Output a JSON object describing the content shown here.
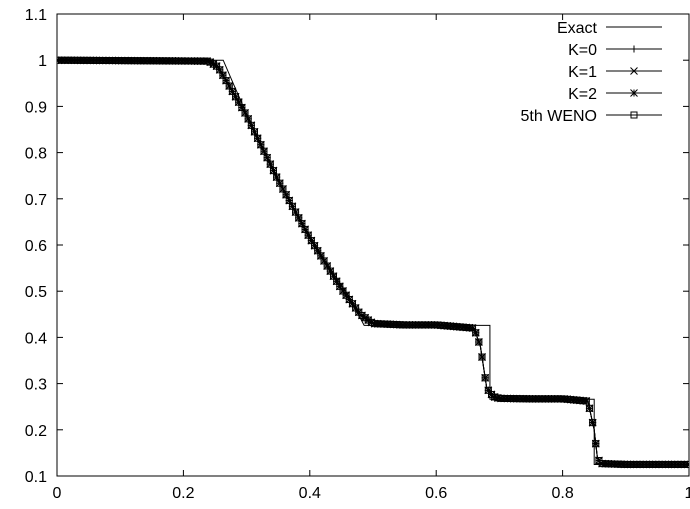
{
  "chart_data": {
    "type": "line",
    "title": "",
    "xlabel": "",
    "ylabel": "",
    "xlim": [
      0,
      1
    ],
    "ylim": [
      0.1,
      1.1
    ],
    "grid": false,
    "legend_position": "top-right",
    "x_ticks": [
      {
        "value": 0,
        "label": "0"
      },
      {
        "value": 0.2,
        "label": "0.2"
      },
      {
        "value": 0.4,
        "label": "0.4"
      },
      {
        "value": 0.6,
        "label": "0.6"
      },
      {
        "value": 0.8,
        "label": "0.8"
      },
      {
        "value": 1,
        "label": "1"
      }
    ],
    "y_ticks": [
      {
        "value": 0.1,
        "label": "0.1"
      },
      {
        "value": 0.2,
        "label": "0.2"
      },
      {
        "value": 0.3,
        "label": "0.3"
      },
      {
        "value": 0.4,
        "label": "0.4"
      },
      {
        "value": 0.5,
        "label": "0.5"
      },
      {
        "value": 0.6,
        "label": "0.6"
      },
      {
        "value": 0.7,
        "label": "0.7"
      },
      {
        "value": 0.8,
        "label": "0.8"
      },
      {
        "value": 0.9,
        "label": "0.9"
      },
      {
        "value": 1,
        "label": "1"
      },
      {
        "value": 1.1,
        "label": "1.1"
      }
    ],
    "series": [
      {
        "name": "Exact",
        "marker": "none",
        "x": [
          0.0,
          0.263,
          0.28,
          0.3,
          0.32,
          0.34,
          0.36,
          0.38,
          0.4,
          0.42,
          0.44,
          0.46,
          0.486,
          0.5,
          0.55,
          0.6,
          0.65,
          0.685,
          0.685,
          0.75,
          0.8,
          0.85,
          0.85,
          0.9,
          0.95,
          1.0
        ],
        "y": [
          1.0,
          1.0,
          0.946,
          0.884,
          0.825,
          0.77,
          0.717,
          0.667,
          0.62,
          0.575,
          0.533,
          0.493,
          0.426,
          0.426,
          0.426,
          0.426,
          0.426,
          0.426,
          0.266,
          0.266,
          0.266,
          0.266,
          0.125,
          0.125,
          0.125,
          0.125
        ]
      },
      {
        "name": "K=0",
        "marker": "plus",
        "x": [
          0.0,
          0.24,
          0.255,
          0.27,
          0.3,
          0.35,
          0.4,
          0.45,
          0.48,
          0.5,
          0.55,
          0.6,
          0.66,
          0.67,
          0.68,
          0.69,
          0.7,
          0.75,
          0.8,
          0.84,
          0.85,
          0.855,
          0.86,
          0.9,
          0.95,
          1.0
        ],
        "y": [
          1.0,
          0.998,
          0.985,
          0.95,
          0.88,
          0.74,
          0.615,
          0.505,
          0.45,
          0.43,
          0.427,
          0.427,
          0.42,
          0.38,
          0.29,
          0.272,
          0.268,
          0.267,
          0.267,
          0.262,
          0.2,
          0.14,
          0.127,
          0.125,
          0.125,
          0.125
        ]
      },
      {
        "name": "K=1",
        "marker": "cross",
        "x": [
          0.0,
          0.24,
          0.255,
          0.27,
          0.3,
          0.35,
          0.4,
          0.45,
          0.48,
          0.5,
          0.55,
          0.6,
          0.66,
          0.67,
          0.68,
          0.69,
          0.7,
          0.75,
          0.8,
          0.84,
          0.85,
          0.855,
          0.86,
          0.9,
          0.95,
          1.0
        ],
        "y": [
          1.0,
          0.998,
          0.985,
          0.95,
          0.88,
          0.74,
          0.615,
          0.505,
          0.45,
          0.43,
          0.427,
          0.427,
          0.42,
          0.38,
          0.29,
          0.272,
          0.268,
          0.267,
          0.267,
          0.262,
          0.2,
          0.14,
          0.127,
          0.125,
          0.125,
          0.125
        ]
      },
      {
        "name": "K=2",
        "marker": "star",
        "x": [
          0.0,
          0.24,
          0.255,
          0.27,
          0.3,
          0.35,
          0.4,
          0.45,
          0.48,
          0.5,
          0.55,
          0.6,
          0.66,
          0.67,
          0.68,
          0.69,
          0.7,
          0.75,
          0.8,
          0.84,
          0.85,
          0.855,
          0.86,
          0.9,
          0.95,
          1.0
        ],
        "y": [
          1.0,
          0.998,
          0.985,
          0.95,
          0.88,
          0.74,
          0.615,
          0.505,
          0.45,
          0.43,
          0.427,
          0.427,
          0.42,
          0.38,
          0.29,
          0.272,
          0.268,
          0.267,
          0.267,
          0.262,
          0.2,
          0.14,
          0.127,
          0.125,
          0.125,
          0.125
        ]
      },
      {
        "name": "5th WENO",
        "marker": "square",
        "x": [
          0.0,
          0.24,
          0.255,
          0.27,
          0.3,
          0.35,
          0.4,
          0.45,
          0.48,
          0.5,
          0.55,
          0.6,
          0.66,
          0.67,
          0.68,
          0.69,
          0.7,
          0.75,
          0.8,
          0.84,
          0.85,
          0.855,
          0.86,
          0.9,
          0.95,
          1.0
        ],
        "y": [
          1.0,
          0.998,
          0.985,
          0.95,
          0.88,
          0.74,
          0.615,
          0.505,
          0.45,
          0.43,
          0.427,
          0.427,
          0.42,
          0.38,
          0.29,
          0.272,
          0.268,
          0.267,
          0.267,
          0.262,
          0.2,
          0.14,
          0.127,
          0.125,
          0.125,
          0.125
        ]
      }
    ]
  }
}
